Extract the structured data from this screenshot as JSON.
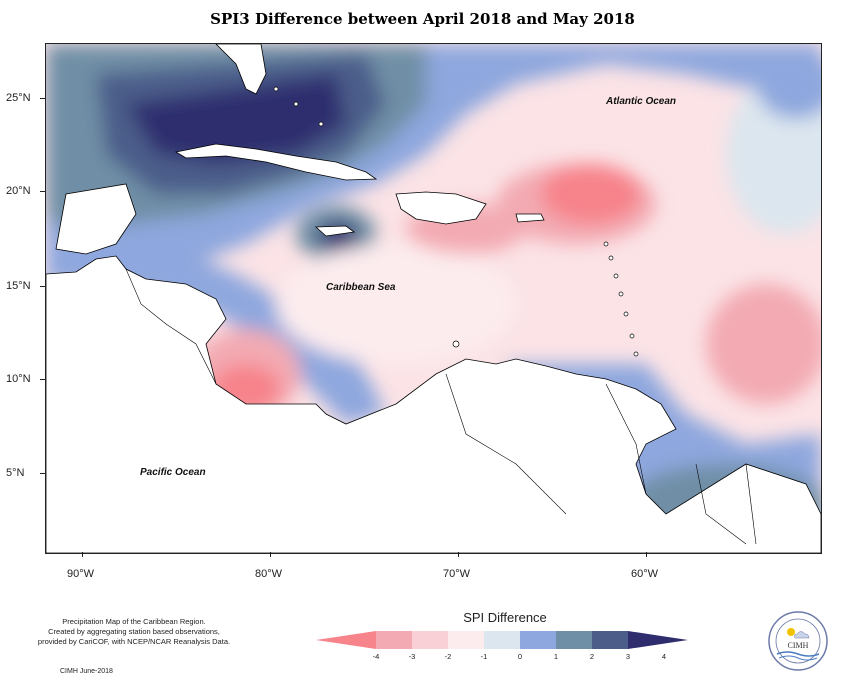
{
  "title": "SPI3 Difference between April 2018 and May 2018",
  "ocean_labels": {
    "atlantic": "Atlantic Ocean",
    "caribbean": "Caribbean Sea",
    "pacific": "Pacific Ocean"
  },
  "axes": {
    "lat": [
      "25°N",
      "20°N",
      "15°N",
      "10°N",
      "5°N"
    ],
    "lon": [
      "90°W",
      "80°W",
      "70°W",
      "60°W"
    ]
  },
  "legend": {
    "title": "SPI Difference",
    "ticks": [
      "-4",
      "-3",
      "-2",
      "-1",
      "0",
      "1",
      "2",
      "3",
      "4"
    ],
    "colors": [
      "#f7838b",
      "#f3aab2",
      "#f8d0d6",
      "#fcecee",
      "#dce6ee",
      "#8ea7de",
      "#6f8fa6",
      "#4c5d8a",
      "#2f2d6e"
    ]
  },
  "credit": {
    "line1": "Precipitation Map of the Caribbean Region.",
    "line2": "Created by aggregating station based observations,",
    "line3": "provided by CariCOF, with NCEP/NCAR Reanalysis Data.",
    "footer": "CIMH June-2018"
  },
  "logo": {
    "text": "CIMH"
  }
}
